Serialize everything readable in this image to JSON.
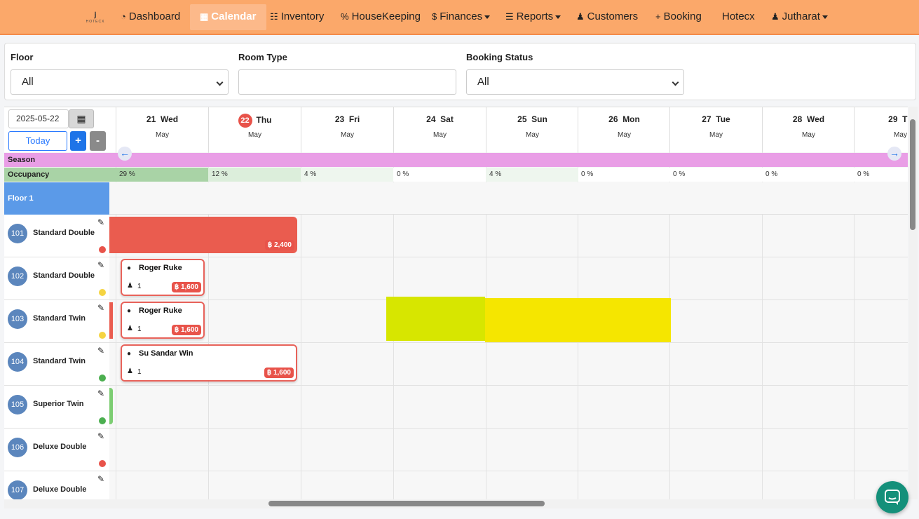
{
  "nav": {
    "logo_mark": "ⱼ",
    "logo_word": "HOTECX",
    "items": [
      {
        "label": "Dashboard",
        "icon": "◔"
      },
      {
        "label": "Calendar",
        "icon": "▦"
      },
      {
        "label": "Inventory",
        "icon": "☷"
      },
      {
        "label": "HouseKeeping",
        "icon": "%"
      },
      {
        "label": "Finances",
        "icon": "$"
      },
      {
        "label": "Reports",
        "icon": "☰"
      },
      {
        "label": "Customers",
        "icon": "♟"
      },
      {
        "label": "Booking",
        "icon": "+"
      },
      {
        "label": "Hotecx",
        "icon": ""
      },
      {
        "label": "Jutharat",
        "icon": "♟"
      }
    ]
  },
  "filters": {
    "floor": {
      "label": "Floor",
      "value": "All"
    },
    "room_type": {
      "label": "Room Type",
      "value": ""
    },
    "booking_status": {
      "label": "Booking Status",
      "value": "All"
    }
  },
  "toolbar": {
    "date": "2025-05-22",
    "today": "Today",
    "plus": "+",
    "minus": "-"
  },
  "days": [
    {
      "num": "21",
      "dow": "Wed",
      "month": "May"
    },
    {
      "num": "22",
      "dow": "Thu",
      "month": "May"
    },
    {
      "num": "23",
      "dow": "Fri",
      "month": "May"
    },
    {
      "num": "24",
      "dow": "Sat",
      "month": "May"
    },
    {
      "num": "25",
      "dow": "Sun",
      "month": "May"
    },
    {
      "num": "26",
      "dow": "Mon",
      "month": "May"
    },
    {
      "num": "27",
      "dow": "Tue",
      "month": "May"
    },
    {
      "num": "28",
      "dow": "Wed",
      "month": "May"
    },
    {
      "num": "29",
      "dow": "Th",
      "month": "May"
    }
  ],
  "season_label": "Season",
  "occupancy_label": "Occupancy",
  "occupancy": [
    "29 %",
    "12 %",
    "4 %",
    "0 %",
    "4 %",
    "0 %",
    "0 %",
    "0 %",
    "0 %"
  ],
  "floor_label": "Floor 1",
  "rooms": [
    {
      "num": "101",
      "type": "Standard Double",
      "status_color": "#e8534a"
    },
    {
      "num": "102",
      "type": "Standard Double",
      "status_color": "#f5d442"
    },
    {
      "num": "103",
      "type": "Standard Twin",
      "status_color": "#f5d442"
    },
    {
      "num": "104",
      "type": "Standard Twin",
      "status_color": "#4caf50"
    },
    {
      "num": "105",
      "type": "Superior Twin",
      "status_color": "#4caf50"
    },
    {
      "num": "106",
      "type": "Deluxe Double",
      "status_color": "#e8534a"
    },
    {
      "num": "107",
      "type": "Deluxe Double",
      "status_color": "#e8534a"
    }
  ],
  "bookings": {
    "b101": {
      "price": "฿ 2,400"
    },
    "b102": {
      "guest": "Roger Ruke",
      "pax": "1",
      "price": "฿ 1,600"
    },
    "b103": {
      "guest": "Roger Ruke",
      "pax": "1",
      "price": "฿ 1,600"
    },
    "b104": {
      "guest": "Su Sandar Win",
      "pax": "1",
      "price": "฿ 1,600"
    }
  },
  "colors": {
    "navbar": "#fba86a",
    "today": "#e8534a",
    "booking_border": "#e8625a",
    "season": "#e99ee6",
    "floor": "#5b9ae8",
    "highlight": "#f5e600"
  },
  "icons": {
    "calendar_picker": "▦",
    "edit": "✎",
    "chat": "●",
    "person": "♟",
    "left_arrow": "←",
    "right_arrow": "→"
  }
}
